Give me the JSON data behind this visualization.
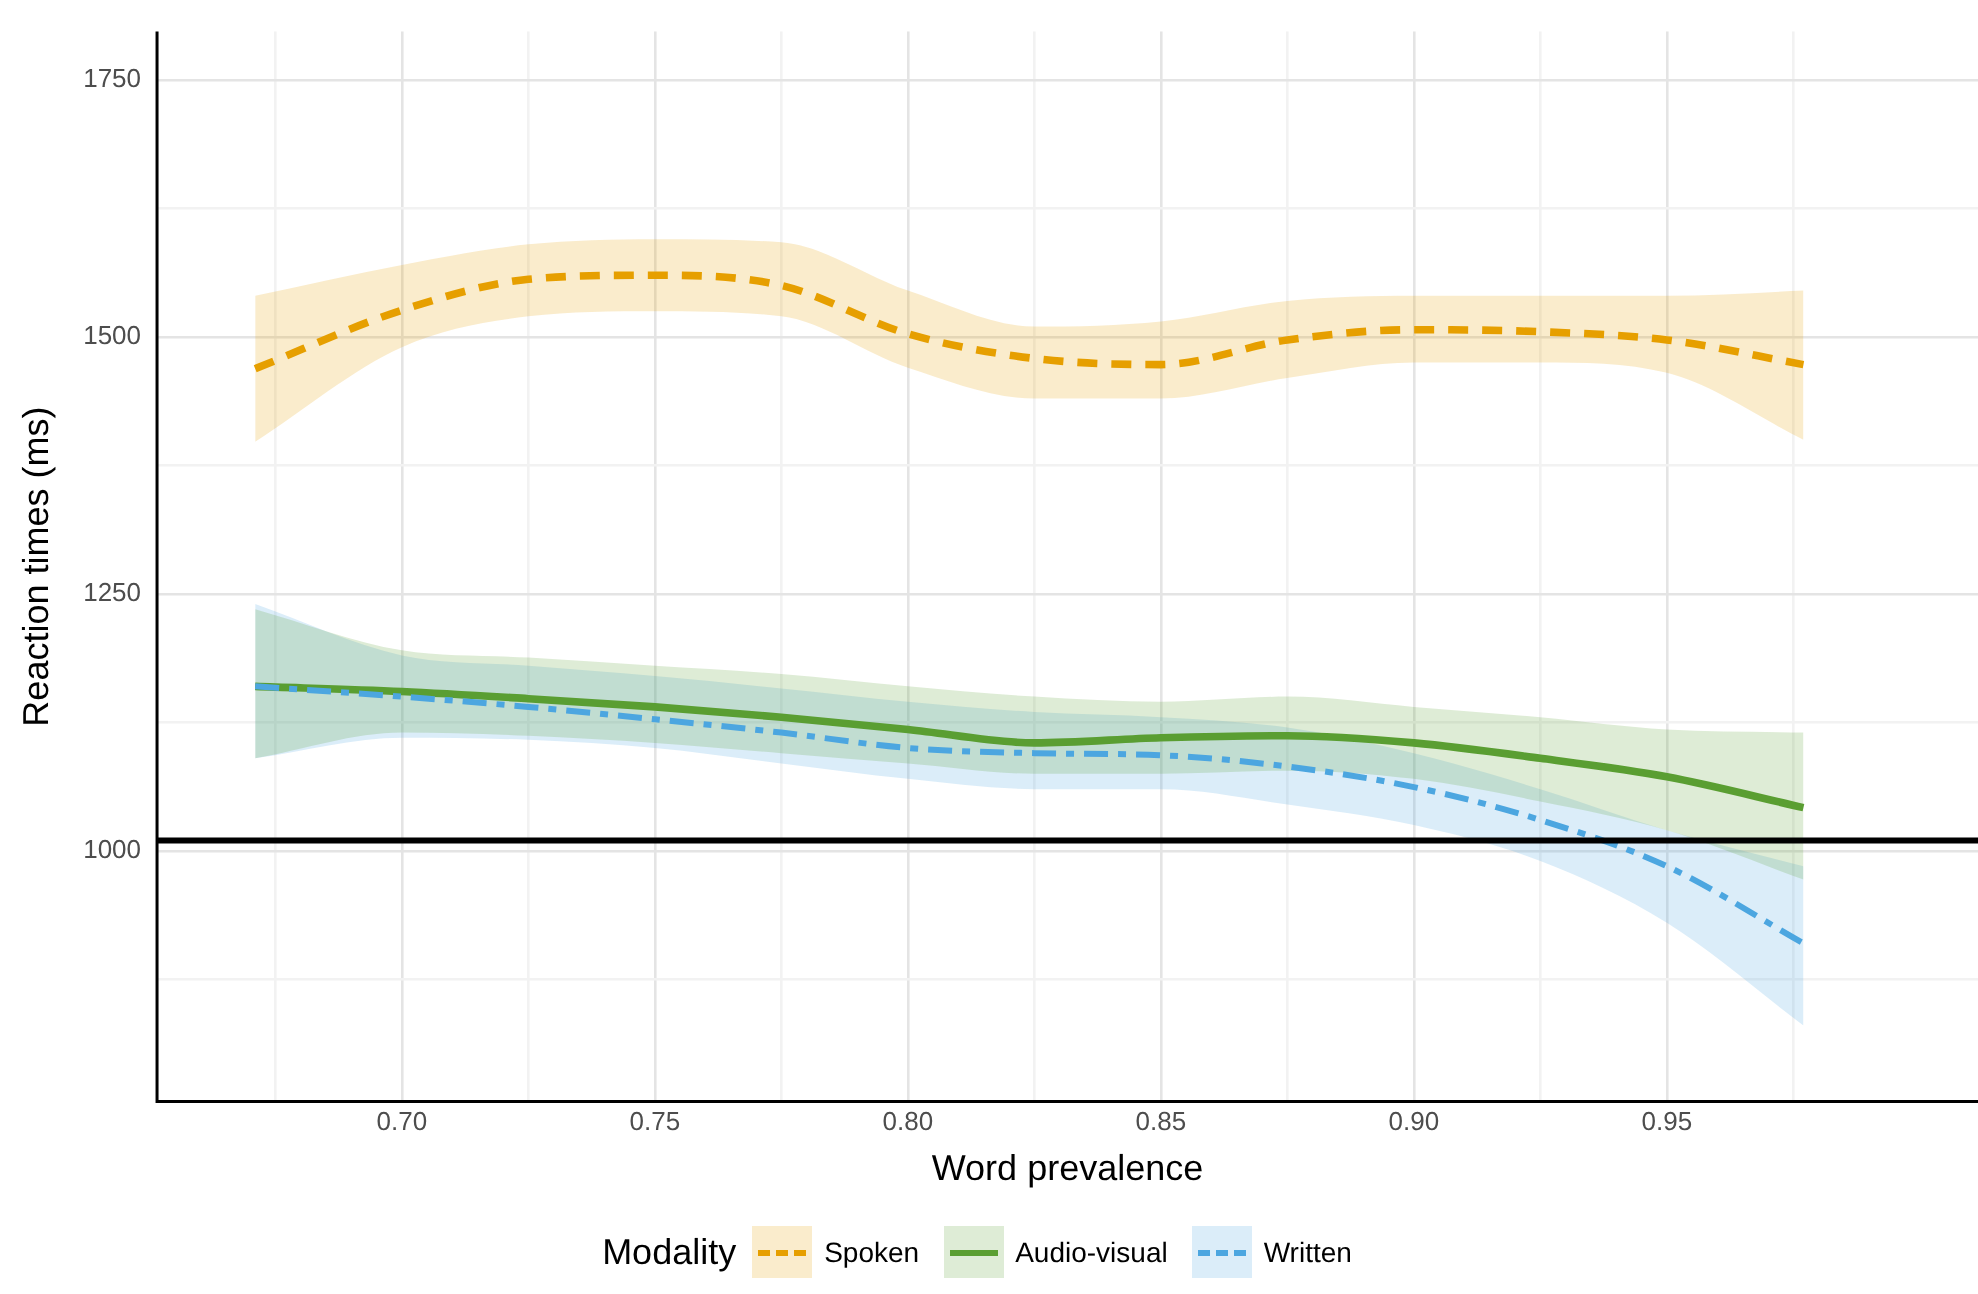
{
  "chart_data": {
    "type": "line",
    "xlabel": "Word prevalence",
    "ylabel": "Reaction times (ms)",
    "legend_title": "Modality",
    "legend": "bottom",
    "grid": true,
    "xlim": [
      0.6516,
      1.0115
    ],
    "xticks": [
      {
        "value": 0.675,
        "label": null
      },
      {
        "value": 0.7,
        "label": "0.70"
      },
      {
        "value": 0.725,
        "label": null
      },
      0.75,
      {
        "value": 0.775,
        "label": null
      },
      {
        "value": 0.8,
        "label": "0.80"
      },
      {
        "value": 0.825,
        "label": null
      },
      0.85,
      {
        "value": 0.875,
        "label": null
      },
      {
        "value": 0.9,
        "label": "0.90"
      },
      {
        "value": 0.925,
        "label": null
      },
      0.95,
      {
        "value": 0.975,
        "label": null
      }
    ],
    "ylim": [
      756,
      1797
    ],
    "yticks": [
      {
        "value": 875,
        "label": null
      },
      1000,
      {
        "value": 1125,
        "label": null
      },
      1250,
      {
        "value": 1375,
        "label": null
      },
      1500,
      {
        "value": 1625,
        "label": null
      },
      1750
    ],
    "x": [
      0.671,
      0.7,
      0.725,
      0.75,
      0.775,
      0.8,
      0.825,
      0.85,
      0.875,
      0.9,
      0.925,
      0.95,
      0.977
    ],
    "ref_lines": [
      {
        "axis": "y",
        "value": 1010,
        "color": "#000000"
      }
    ],
    "series": [
      {
        "name": "Spoken",
        "color": "#e69f00",
        "line_style": "dashed",
        "values": [
          1469,
          1526,
          1556,
          1560,
          1550,
          1503,
          1479,
          1473,
          1497,
          1507,
          1505,
          1497,
          1473
        ],
        "upper": [
          1540,
          1570,
          1590,
          1595,
          1592,
          1545,
          1510,
          1515,
          1535,
          1540,
          1540,
          1540,
          1545
        ],
        "lower": [
          1398,
          1490,
          1520,
          1525,
          1520,
          1470,
          1440,
          1440,
          1460,
          1475,
          1475,
          1465,
          1400
        ]
      },
      {
        "name": "Audio-visual",
        "color": "#5a9e32",
        "line_style": "solid",
        "values": [
          1160,
          1155,
          1148,
          1140,
          1130,
          1118,
          1105,
          1110,
          1112,
          1105,
          1090,
          1072,
          1042
        ],
        "upper": [
          1235,
          1195,
          1188,
          1180,
          1172,
          1160,
          1150,
          1145,
          1150,
          1140,
          1130,
          1118,
          1115
        ],
        "lower": [
          1090,
          1115,
          1112,
          1105,
          1095,
          1085,
          1075,
          1075,
          1078,
          1070,
          1048,
          1020,
          972
        ]
      },
      {
        "name": "Written",
        "color": "#4ca6e0",
        "line_style": "dashdot",
        "values": [
          1160,
          1150,
          1140,
          1128,
          1115,
          1100,
          1095,
          1093,
          1082,
          1062,
          1030,
          985,
          910
        ],
        "upper": [
          1240,
          1190,
          1180,
          1170,
          1158,
          1145,
          1135,
          1130,
          1120,
          1095,
          1060,
          1020,
          985
        ],
        "lower": [
          1090,
          1110,
          1108,
          1100,
          1085,
          1070,
          1060,
          1060,
          1045,
          1025,
          990,
          930,
          830
        ]
      }
    ]
  }
}
